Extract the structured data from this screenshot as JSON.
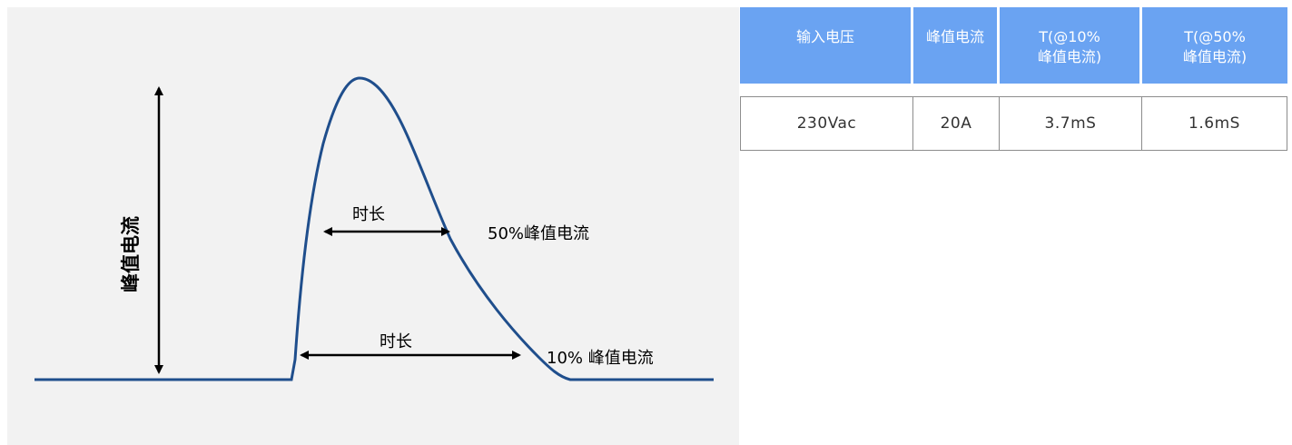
{
  "diagram": {
    "peak_label": "峰值电流",
    "duration_upper_label": "时长",
    "duration_lower_label": "时长",
    "fifty_percent_label": "50%峰值电流",
    "ten_percent_label": "10% 峰值电流",
    "colors": {
      "curve": "#1f4e8c",
      "arrow": "#000000",
      "panel": "#f2f2f2"
    }
  },
  "table": {
    "header_color": "#6aa3f2",
    "headers": [
      [
        "输入电压"
      ],
      [
        "峰值电流"
      ],
      [
        "T(@10%",
        "峰值电流)"
      ],
      [
        "T(@50%",
        "峰值电流)"
      ]
    ],
    "rows": [
      [
        "230Vac",
        "20A",
        "3.7mS",
        "1.6mS"
      ]
    ]
  }
}
